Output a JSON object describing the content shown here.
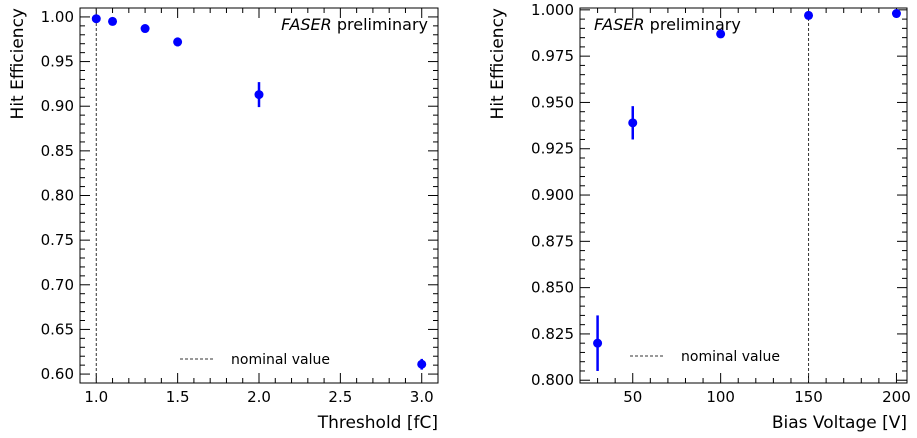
{
  "chart_data": [
    {
      "type": "scatter",
      "xlabel": "Threshold [fC]",
      "ylabel": "Hit Efficiency",
      "xlim": [
        0.9,
        3.1
      ],
      "ylim": [
        0.59,
        1.01
      ],
      "x_ticks": [
        "1.0",
        "1.5",
        "2.0",
        "2.5",
        "3.0"
      ],
      "y_ticks": [
        "0.60",
        "0.65",
        "0.70",
        "0.75",
        "0.80",
        "0.85",
        "0.90",
        "0.95",
        "1.00"
      ],
      "annotation_prefix": "FASER",
      "annotation_suffix": " preliminary",
      "legend_label": "nominal value",
      "legend_position": "bottom-right",
      "nominal_x": 1.0,
      "marker_color": "#0000ff",
      "points": [
        {
          "x": 1.0,
          "y": 0.998,
          "err": 0.002
        },
        {
          "x": 1.1,
          "y": 0.995,
          "err": 0.002
        },
        {
          "x": 1.3,
          "y": 0.987,
          "err": 0.003
        },
        {
          "x": 1.5,
          "y": 0.972,
          "err": 0.005
        },
        {
          "x": 2.0,
          "y": 0.913,
          "err": 0.014
        },
        {
          "x": 3.0,
          "y": 0.611,
          "err": 0.006
        }
      ]
    },
    {
      "type": "scatter",
      "xlabel": "Bias Voltage [V]",
      "ylabel": "Hit Efficiency",
      "xlim": [
        20,
        206
      ],
      "ylim": [
        0.7985,
        1.001
      ],
      "x_ticks": [
        "50",
        "100",
        "150",
        "200"
      ],
      "y_ticks": [
        "0.800",
        "0.825",
        "0.850",
        "0.875",
        "0.900",
        "0.925",
        "0.950",
        "0.975",
        "1.000"
      ],
      "annotation_prefix": "FASER",
      "annotation_suffix": " preliminary",
      "legend_label": "nominal value",
      "legend_position": "bottom-left",
      "nominal_x": 150,
      "marker_color": "#0000ff",
      "points": [
        {
          "x": 30,
          "y": 0.82,
          "err": 0.015
        },
        {
          "x": 50,
          "y": 0.939,
          "err": 0.009
        },
        {
          "x": 100,
          "y": 0.987,
          "err": 0.001
        },
        {
          "x": 150,
          "y": 0.997,
          "err": 0.001
        },
        {
          "x": 200,
          "y": 0.998,
          "err": 0.001
        }
      ]
    }
  ]
}
